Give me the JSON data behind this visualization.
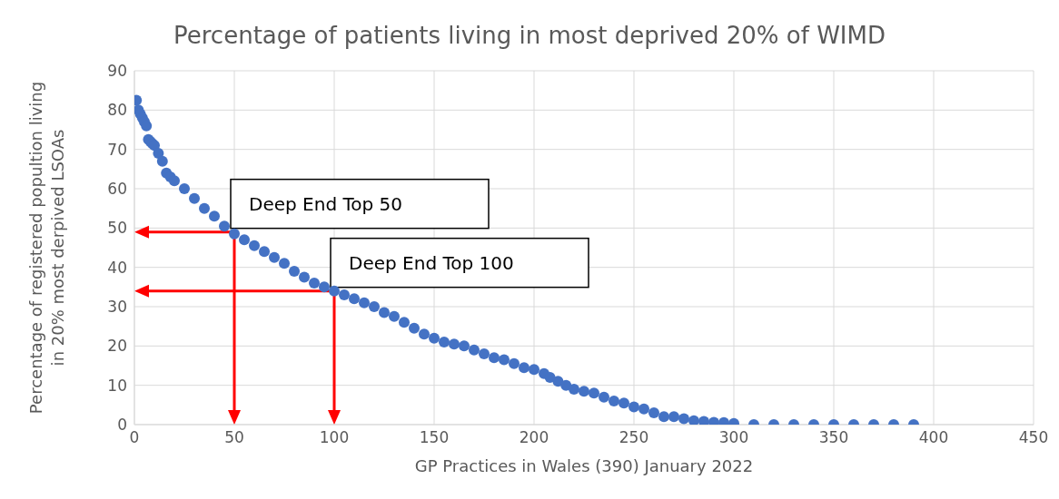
{
  "chart_data": {
    "type": "scatter",
    "title": "Percentage of patients living in most deprived 20% of WIMD",
    "xlabel": "GP Practices  in Wales (390) January 2022",
    "ylabel": "Percentage of registered popultion living\nin 20% most derpived LSOAs",
    "x": [
      1,
      2,
      3,
      4,
      5,
      6,
      7,
      8,
      9,
      10,
      12,
      14,
      16,
      18,
      20,
      25,
      30,
      35,
      40,
      45,
      50,
      55,
      60,
      65,
      70,
      75,
      80,
      85,
      90,
      95,
      100,
      105,
      110,
      115,
      120,
      125,
      130,
      135,
      140,
      145,
      150,
      155,
      160,
      165,
      170,
      175,
      180,
      185,
      190,
      195,
      200,
      205,
      208,
      212,
      216,
      220,
      225,
      230,
      235,
      240,
      245,
      250,
      255,
      260,
      265,
      270,
      275,
      280,
      285,
      290,
      295,
      300,
      310,
      320,
      330,
      340,
      350,
      360,
      370,
      380,
      390
    ],
    "series": [
      {
        "color": "#4472c4",
        "values": [
          82.5,
          80,
          79,
          78,
          77,
          76,
          72.5,
          72,
          71.5,
          71,
          69,
          67,
          64,
          63,
          62,
          60,
          57.5,
          55,
          53,
          50.5,
          48.5,
          47,
          45.5,
          44,
          42.5,
          41,
          39,
          37.5,
          36,
          35,
          34,
          33,
          32,
          31,
          30,
          28.5,
          27.5,
          26,
          24.5,
          23,
          22,
          21,
          20.5,
          20,
          19,
          18,
          17,
          16.5,
          15.5,
          14.5,
          14,
          13,
          12,
          11,
          10,
          9,
          8.5,
          8,
          7,
          6,
          5.5,
          4.5,
          4,
          3,
          2,
          2,
          1.5,
          1,
          0.8,
          0.6,
          0.5,
          0.3,
          0,
          0,
          0,
          0,
          0,
          0,
          0,
          0,
          0
        ]
      }
    ],
    "xlim": [
      0,
      450
    ],
    "xticks": [
      0,
      50,
      100,
      150,
      200,
      250,
      300,
      350,
      400,
      450
    ],
    "ylim": [
      0,
      90
    ],
    "yticks": [
      0,
      10,
      20,
      30,
      40,
      50,
      60,
      70,
      80,
      90
    ],
    "grid": true,
    "marker": "circle",
    "annotations": [
      {
        "text": "Deep End Top 50",
        "x": 50,
        "y": 49
      },
      {
        "text": "Deep End Top 100",
        "x": 100,
        "y": 34
      }
    ]
  }
}
